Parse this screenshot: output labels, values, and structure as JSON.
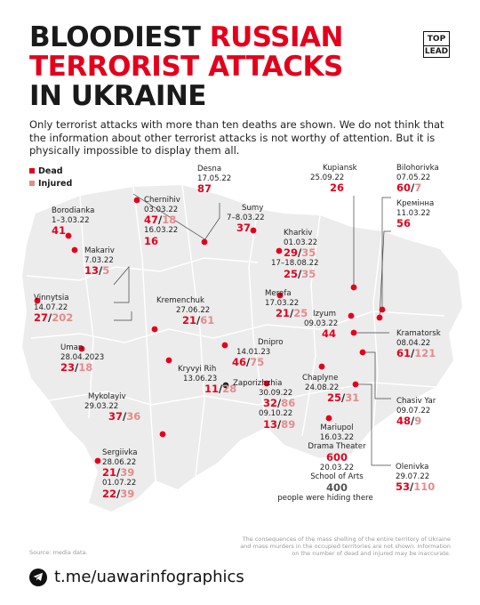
{
  "title": {
    "line1_black": "BLOODIEST ",
    "line1_red": "RUSSIAN",
    "line2_red": "TERRORIST ATTACKS",
    "line3_black": "IN UKRAINE"
  },
  "logo": {
    "top": "TOP",
    "bottom": "LEAD"
  },
  "intro": "Only terrorist attacks with more than ten deaths are shown. We do not think that the information about other terrorist attacks is not worthy of attention. But it is physically impossible to display them all.",
  "legend": {
    "dead": "Dead",
    "injured": "Injured",
    "dead_color": "#e4001b",
    "injured_color": "#e68a8a"
  },
  "attacks": {
    "desna": {
      "city": "Desna",
      "date": "17.05.22",
      "dead": "87"
    },
    "chernihiv": {
      "city": "Chernihiv",
      "date1": "03.03.22",
      "dead1": "47",
      "injured1": "18",
      "date2": "16.03.22",
      "dead2": "16"
    },
    "borodianka": {
      "city": "Borodianka",
      "date": "1–3.03.22",
      "dead": "41"
    },
    "makariv": {
      "city": "Makariv",
      "date": "7.03.22",
      "dead": "13",
      "injured": "5"
    },
    "vinnytsia": {
      "city": "Vinnytsia",
      "date": "14.07.22",
      "dead": "27",
      "injured": "202"
    },
    "uman": {
      "city": "Uman",
      "date": "28.04.2023",
      "dead": "23",
      "injured": "18"
    },
    "kremenchuk": {
      "city": "Kremenchuk",
      "date": "27.06.22",
      "dead": "21",
      "injured": "61"
    },
    "sumy": {
      "city": "Sumy",
      "date": "7–8.03.22",
      "dead": "37"
    },
    "kharkiv": {
      "city": "Kharkiv",
      "date1": "01.03.22",
      "dead1": "29",
      "injured1": "35",
      "date2": "17–18.08.22",
      "dead2": "25",
      "injured2": "35"
    },
    "merefa": {
      "city": "Merefa",
      "date": "17.03.22",
      "dead": "21",
      "injured": "25"
    },
    "kupiansk": {
      "city": "Kupiansk",
      "date": "25.09.22",
      "dead": "26"
    },
    "bilohorivka": {
      "city": "Bilohorivka",
      "date": "07.05.22",
      "dead": "60",
      "injured": "7"
    },
    "kreminna": {
      "city": "Кремінна",
      "date": "11.03.22",
      "dead": "56"
    },
    "izyum": {
      "city": "Izyum",
      "date": "09.03.22",
      "dead": "44"
    },
    "kramatorsk": {
      "city": "Kramatorsk",
      "date": "08.04.22",
      "dead": "61",
      "injured": "121"
    },
    "dnipro": {
      "city": "Dnipro",
      "date": "14.01.23",
      "dead": "46",
      "injured": "75"
    },
    "kryvyi_rih": {
      "city": "Kryvyi Rih",
      "date": "13.06.23",
      "dead": "11",
      "injured": "28"
    },
    "zaporizhzhia": {
      "city": "Zaporizhzhia",
      "date1": "30.09.22",
      "dead1": "32",
      "injured1": "86",
      "date2": "09.10.22",
      "dead2": "13",
      "injured2": "89"
    },
    "chaplyne": {
      "city": "Chaplyne",
      "date": "24.08.22",
      "dead": "25",
      "injured": "31"
    },
    "chasiv_yar": {
      "city": "Chasiv Yar",
      "date": "09.07.22",
      "dead": "48",
      "injured": "9"
    },
    "mykolayiv": {
      "city": "Mykolayiv",
      "date": "29.03.22",
      "dead": "37",
      "injured": "36"
    },
    "sergiivka": {
      "city": "Sergiivka",
      "date1": "28.06.22",
      "dead1": "21",
      "injured1": "39",
      "date2": "01.07.22",
      "dead2": "22",
      "injured2": "39"
    },
    "mariupol": {
      "city": "Mariupol",
      "date1": "16.03.22",
      "place1": "Drama Theater",
      "count1": "600",
      "date2": "20.03.22",
      "place2": "School of Arts",
      "count2": "400",
      "note": "people were hiding there"
    },
    "olenivka": {
      "city": "Olenivka",
      "date": "29.07.22",
      "dead": "53",
      "injured": "110"
    }
  },
  "footer": {
    "source": "Source: media data.",
    "note": "The consequences of the mass shelling of the entire territory of Ukraine and mass murders in the occupied territories are not shown. Information on the number of dead and injured may be inaccurate.",
    "telegram": "t.me/uawarinfographics"
  }
}
